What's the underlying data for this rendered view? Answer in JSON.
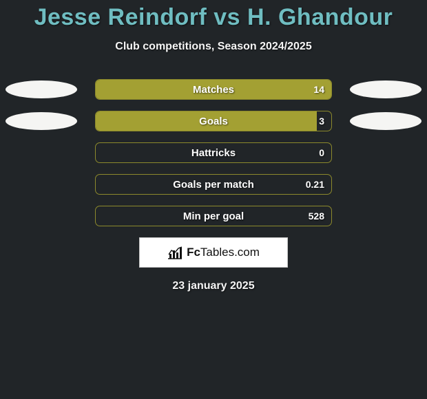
{
  "title": "Jesse Reindorf vs H. Ghandour",
  "subtitle": "Club competitions, Season 2024/2025",
  "stats": {
    "bar_border_color": "#8d8a2c",
    "bar_fill_color": "#a3a033",
    "ellipse_color": "#f5f5f3",
    "rows": [
      {
        "label": "Matches",
        "value": "14",
        "fill_pct": 100,
        "show_left_ellipse": true,
        "show_right_ellipse": true
      },
      {
        "label": "Goals",
        "value": "3",
        "fill_pct": 94,
        "show_left_ellipse": true,
        "show_right_ellipse": true
      },
      {
        "label": "Hattricks",
        "value": "0",
        "fill_pct": 0,
        "show_left_ellipse": false,
        "show_right_ellipse": false
      },
      {
        "label": "Goals per match",
        "value": "0.21",
        "fill_pct": 0,
        "show_left_ellipse": false,
        "show_right_ellipse": false
      },
      {
        "label": "Min per goal",
        "value": "528",
        "fill_pct": 0,
        "show_left_ellipse": false,
        "show_right_ellipse": false
      }
    ]
  },
  "logo": {
    "brand_bold": "Fc",
    "brand_rest": "Tables",
    "brand_suffix": ".com"
  },
  "date": "23 january 2025",
  "colors": {
    "background": "#212528",
    "title": "#6fbdc1",
    "text": "#f5f5f5"
  }
}
